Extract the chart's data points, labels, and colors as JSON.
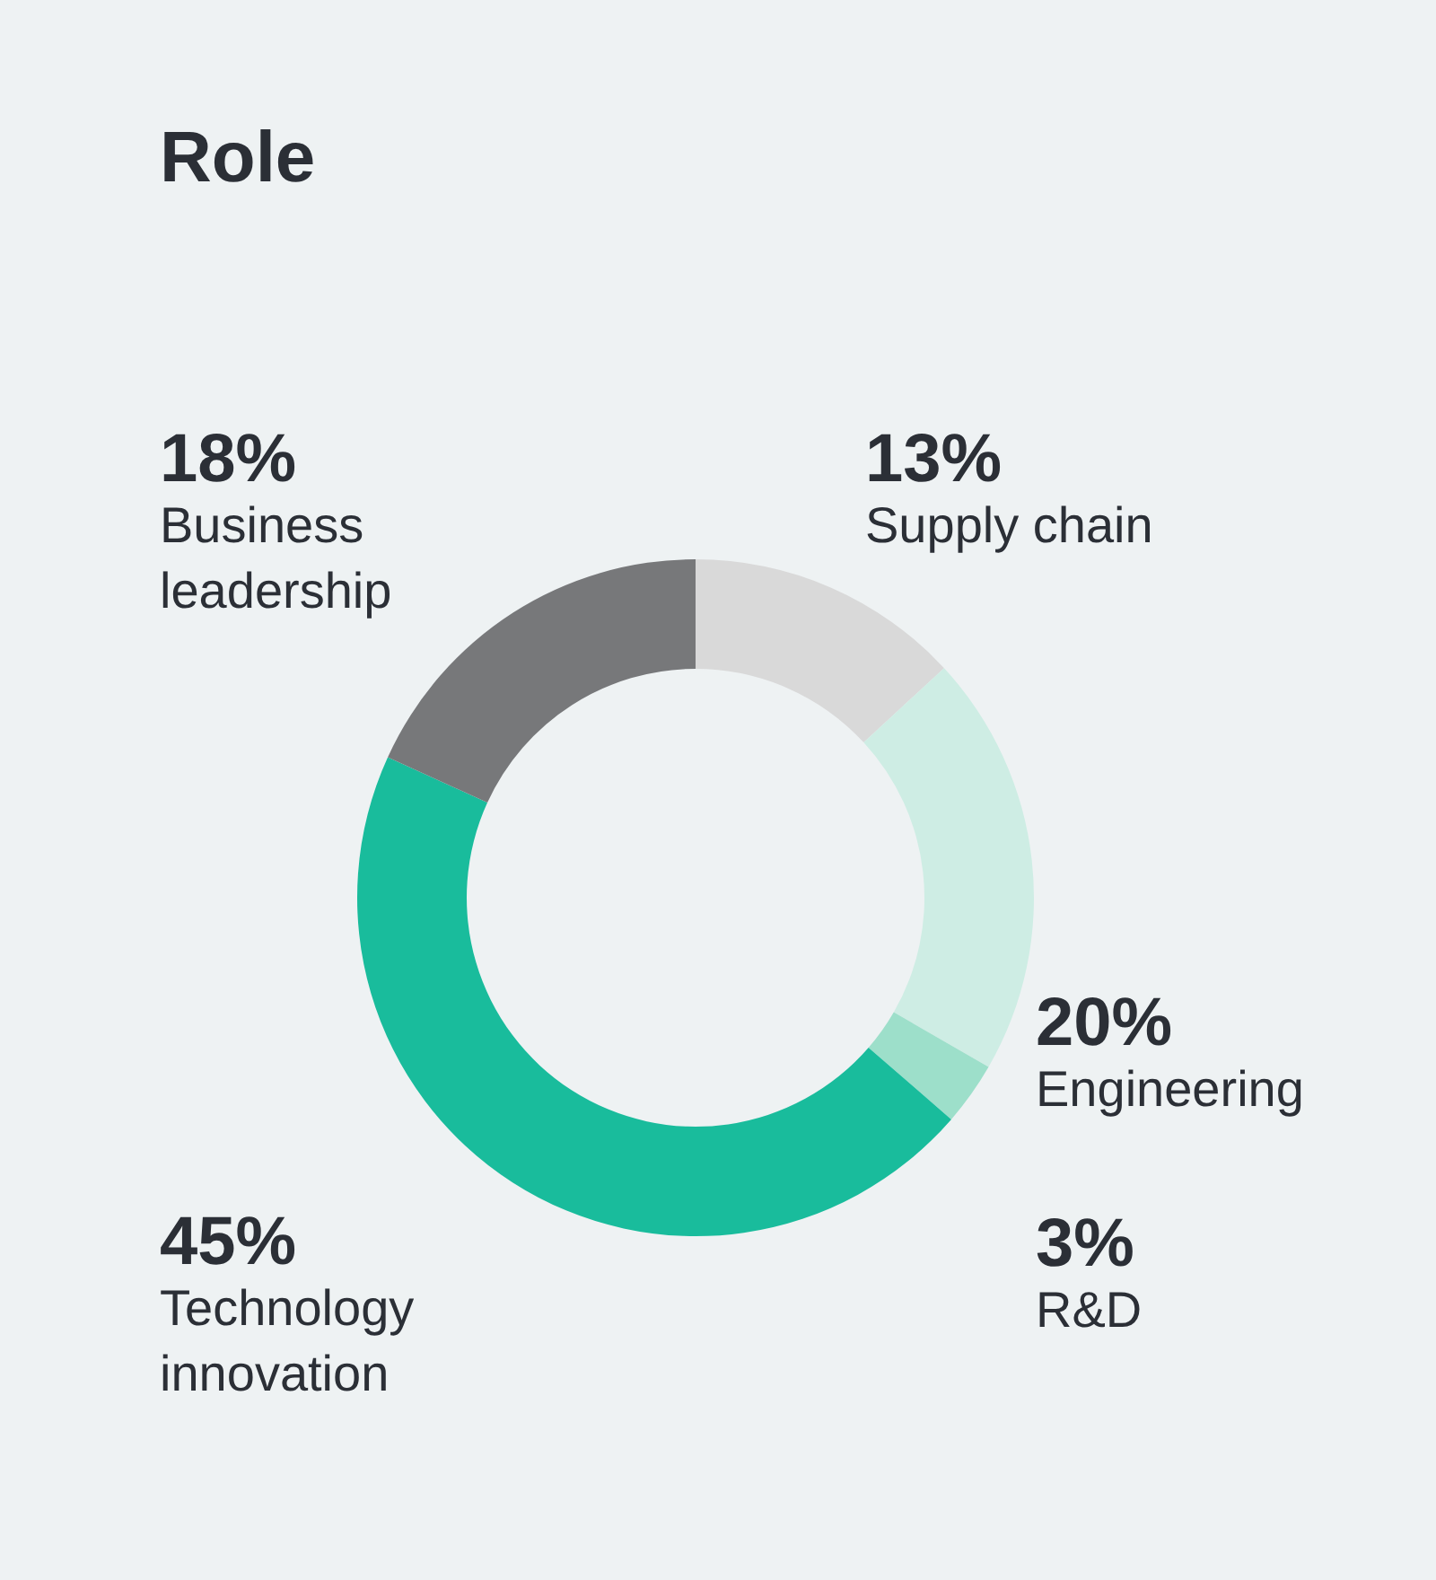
{
  "chart_data": {
    "type": "donut",
    "title": "Role",
    "categories": [
      "Supply chain",
      "Engineering",
      "R&D",
      "Technology innovation",
      "Business leadership"
    ],
    "values": [
      13,
      20,
      3,
      45,
      18
    ],
    "value_labels": [
      "13%",
      "20%",
      "3%",
      "45%",
      "18%"
    ],
    "colors": [
      "#d9d9d9",
      "#ceede4",
      "#9ddfca",
      "#19bc9c",
      "#77787a"
    ]
  }
}
